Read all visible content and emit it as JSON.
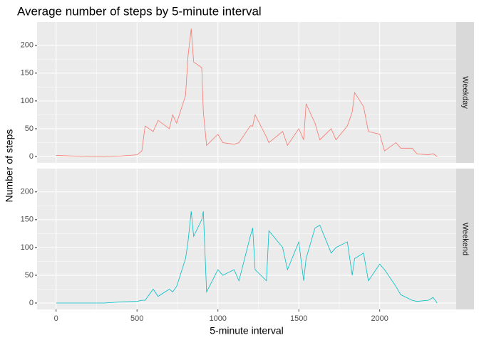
{
  "chart_data": {
    "type": "line",
    "title": "Average number of steps by 5-minute interval",
    "xlabel": "5-minute interval",
    "ylabel": "Number of steps",
    "facet": "rows",
    "x": [
      0,
      100,
      200,
      300,
      400,
      500,
      530,
      550,
      600,
      630,
      700,
      720,
      745,
      800,
      815,
      835,
      850,
      900,
      910,
      930,
      1000,
      1030,
      1100,
      1130,
      1200,
      1215,
      1230,
      1300,
      1315,
      1400,
      1430,
      1500,
      1530,
      1545,
      1600,
      1630,
      1700,
      1730,
      1800,
      1830,
      1845,
      1900,
      1930,
      2000,
      2030,
      2100,
      2130,
      2200,
      2230,
      2300,
      2330,
      2355
    ],
    "series": [
      {
        "name": "Weekday",
        "color": "#F8766D",
        "values": [
          2,
          1,
          0,
          0,
          1,
          3,
          10,
          55,
          45,
          65,
          50,
          75,
          60,
          110,
          180,
          230,
          170,
          160,
          80,
          20,
          40,
          25,
          22,
          25,
          55,
          55,
          75,
          35,
          25,
          45,
          20,
          50,
          30,
          95,
          60,
          30,
          50,
          30,
          55,
          80,
          115,
          90,
          45,
          40,
          10,
          25,
          15,
          15,
          5,
          3,
          5,
          0
        ]
      },
      {
        "name": "Weekend",
        "color": "#00BFC4",
        "values": [
          0,
          0,
          0,
          0,
          2,
          3,
          5,
          5,
          25,
          12,
          25,
          20,
          30,
          80,
          110,
          165,
          120,
          150,
          165,
          20,
          60,
          50,
          60,
          40,
          120,
          135,
          60,
          40,
          130,
          100,
          60,
          110,
          40,
          80,
          135,
          140,
          90,
          100,
          110,
          50,
          80,
          90,
          40,
          70,
          60,
          30,
          15,
          5,
          3,
          5,
          10,
          0
        ]
      }
    ],
    "xlim": [
      -117.75,
      2472.75
    ],
    "xticks": [
      0,
      500,
      1000,
      1500,
      2000
    ],
    "ylim": [
      -11.5,
      241.9
    ],
    "yticks": [
      0,
      50,
      100,
      150,
      200
    ],
    "grid": true
  }
}
